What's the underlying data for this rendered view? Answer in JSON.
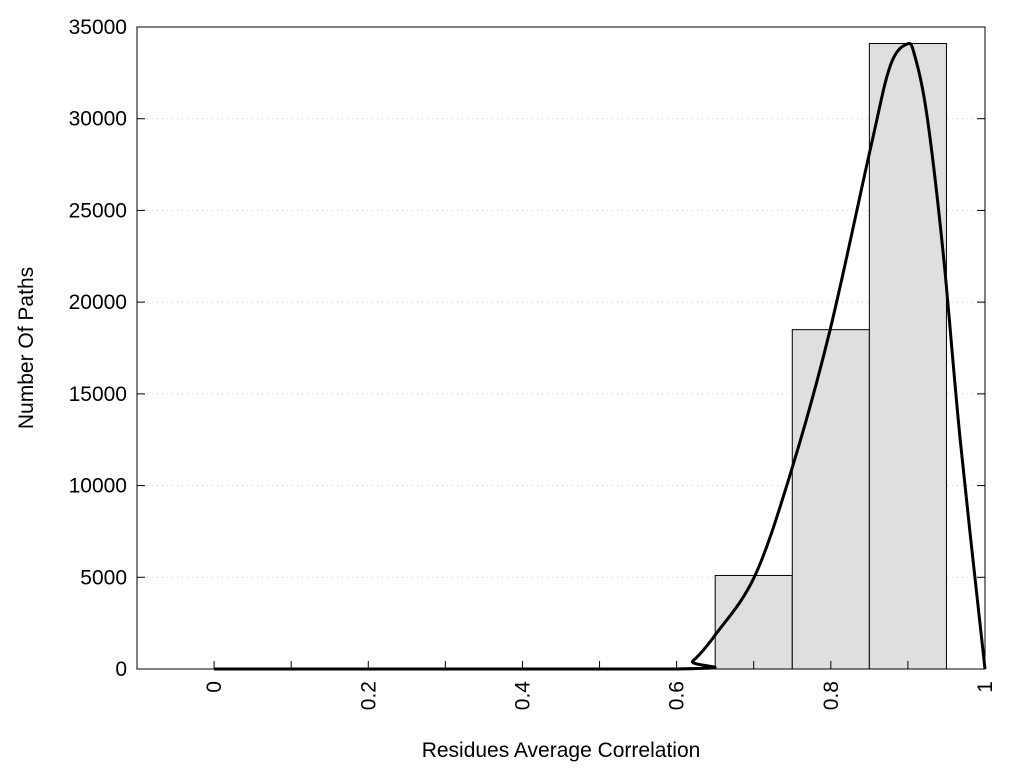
{
  "chart_data": {
    "type": "bar",
    "title": "",
    "xlabel": "Residues Average Correlation",
    "ylabel": "Number Of Paths",
    "xlim": [
      -0.1,
      1.0
    ],
    "ylim": [
      0,
      35000
    ],
    "grid": "horizontal dotted",
    "legend": "none",
    "yticks": [
      0,
      5000,
      10000,
      15000,
      20000,
      25000,
      30000,
      35000
    ],
    "xticks_minor": [
      0,
      0.1,
      0.2,
      0.3,
      0.4,
      0.5,
      0.6,
      0.7,
      0.8,
      0.9,
      1.0
    ],
    "xtick_labels": [
      {
        "value": 0,
        "label": "0"
      },
      {
        "value": 0.2,
        "label": "0.2"
      },
      {
        "value": 0.4,
        "label": "0.4"
      },
      {
        "value": 0.6,
        "label": "0.6"
      },
      {
        "value": 0.8,
        "label": "0.8"
      },
      {
        "value": 1.0,
        "label": "1"
      }
    ],
    "bars": [
      {
        "x0": 0.65,
        "x1": 0.75,
        "value": 5100
      },
      {
        "x0": 0.75,
        "x1": 0.85,
        "value": 18500
      },
      {
        "x0": 0.85,
        "x1": 0.95,
        "value": 34100
      }
    ],
    "fit_curve": {
      "x": [
        0,
        0.6,
        0.621,
        0.65,
        0.702,
        0.751,
        0.799,
        0.851,
        0.877,
        0.899,
        0.909,
        0.925,
        0.946,
        0.968,
        1.0
      ],
      "y": [
        0,
        0,
        436,
        1853,
        5125,
        11124,
        18481,
        28294,
        32873,
        34073,
        33419,
        30093,
        22570,
        12432,
        0
      ]
    },
    "colors": {
      "bar_fill": "#dfdfdf",
      "bar_stroke": "#000000",
      "curve": "#000000",
      "grid": "#c8c8c8"
    }
  }
}
